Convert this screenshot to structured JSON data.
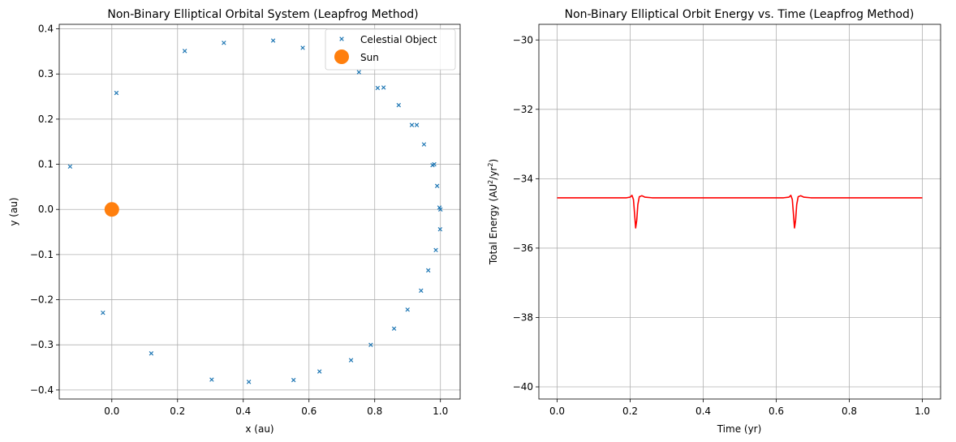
{
  "chart_data": [
    {
      "type": "scatter",
      "title": "Non-Binary Elliptical Orbital System (Leapfrog Method)",
      "xlabel": "x (au)",
      "ylabel": "y (au)",
      "xlim": [
        -0.16,
        1.06
      ],
      "ylim": [
        -0.42,
        0.41
      ],
      "xticks": [
        0.0,
        0.2,
        0.4,
        0.6,
        0.8,
        1.0
      ],
      "xtick_labels": [
        "0.0",
        "0.2",
        "0.4",
        "0.6",
        "0.8",
        "1.0"
      ],
      "yticks": [
        0.4,
        0.3,
        0.2,
        0.1,
        0.0,
        -0.1,
        -0.2,
        -0.3,
        -0.4
      ],
      "ytick_labels": [
        "0.4",
        "0.3",
        "0.2",
        "0.1",
        "0.0",
        "−0.1",
        "−0.2",
        "−0.3",
        "−0.4"
      ],
      "grid": true,
      "legend_position": "top-right",
      "series": [
        {
          "name": "Celestial Object",
          "marker": "x",
          "color": "#1f77b4",
          "points": [
            [
              -0.127,
              0.095
            ],
            [
              0.014,
              0.258
            ],
            [
              0.222,
              0.351
            ],
            [
              0.341,
              0.369
            ],
            [
              0.491,
              0.374
            ],
            [
              0.581,
              0.358
            ],
            [
              0.752,
              0.304
            ],
            [
              0.809,
              0.269
            ],
            [
              0.827,
              0.27
            ],
            [
              0.873,
              0.231
            ],
            [
              0.913,
              0.187
            ],
            [
              0.928,
              0.187
            ],
            [
              0.95,
              0.144
            ],
            [
              0.976,
              0.098
            ],
            [
              0.981,
              0.1
            ],
            [
              0.99,
              0.052
            ],
            [
              0.997,
              0.004
            ],
            [
              1.0,
              0.0
            ],
            [
              0.999,
              -0.044
            ],
            [
              0.986,
              -0.09
            ],
            [
              0.963,
              -0.135
            ],
            [
              0.941,
              -0.18
            ],
            [
              0.9,
              -0.222
            ],
            [
              0.859,
              -0.264
            ],
            [
              0.788,
              -0.3
            ],
            [
              0.728,
              -0.334
            ],
            [
              0.632,
              -0.359
            ],
            [
              0.553,
              -0.378
            ],
            [
              0.417,
              -0.382
            ],
            [
              0.304,
              -0.377
            ],
            [
              0.12,
              -0.319
            ],
            [
              -0.027,
              -0.229
            ]
          ]
        },
        {
          "name": "Sun",
          "marker": "circle",
          "color": "#ff7f0e",
          "points": [
            [
              0.0,
              0.0
            ]
          ]
        }
      ]
    },
    {
      "type": "line",
      "title": "Non-Binary Elliptical Orbit Energy vs. Time (Leapfrog Method)",
      "xlabel": "Time (yr)",
      "ylabel_parts": [
        "Total Energy (AU",
        "2",
        "/yr",
        "2",
        ")"
      ],
      "xlim": [
        -0.05,
        1.05
      ],
      "ylim": [
        -40.35,
        -29.55
      ],
      "xticks": [
        0.0,
        0.2,
        0.4,
        0.6,
        0.8,
        1.0
      ],
      "xtick_labels": [
        "0.0",
        "0.2",
        "0.4",
        "0.6",
        "0.8",
        "1.0"
      ],
      "yticks": [
        -30,
        -32,
        -34,
        -36,
        -38,
        -40
      ],
      "ytick_labels": [
        "−30",
        "−32",
        "−34",
        "−36",
        "−38",
        "−40"
      ],
      "grid": true,
      "series": [
        {
          "color": "#ff0000",
          "baseline": -34.55,
          "points": [
            [
              0.0,
              -34.55
            ],
            [
              0.19,
              -34.55
            ],
            [
              0.2,
              -34.53
            ],
            [
              0.205,
              -34.48
            ],
            [
              0.209,
              -34.6
            ],
            [
              0.212,
              -35.0
            ],
            [
              0.215,
              -35.42
            ],
            [
              0.218,
              -35.2
            ],
            [
              0.221,
              -34.75
            ],
            [
              0.225,
              -34.52
            ],
            [
              0.232,
              -34.49
            ],
            [
              0.24,
              -34.53
            ],
            [
              0.26,
              -34.55
            ],
            [
              0.62,
              -34.55
            ],
            [
              0.635,
              -34.53
            ],
            [
              0.64,
              -34.48
            ],
            [
              0.644,
              -34.6
            ],
            [
              0.647,
              -35.0
            ],
            [
              0.65,
              -35.42
            ],
            [
              0.653,
              -35.2
            ],
            [
              0.656,
              -34.75
            ],
            [
              0.66,
              -34.52
            ],
            [
              0.667,
              -34.49
            ],
            [
              0.675,
              -34.53
            ],
            [
              0.695,
              -34.55
            ],
            [
              1.0,
              -34.55
            ]
          ]
        }
      ]
    }
  ]
}
